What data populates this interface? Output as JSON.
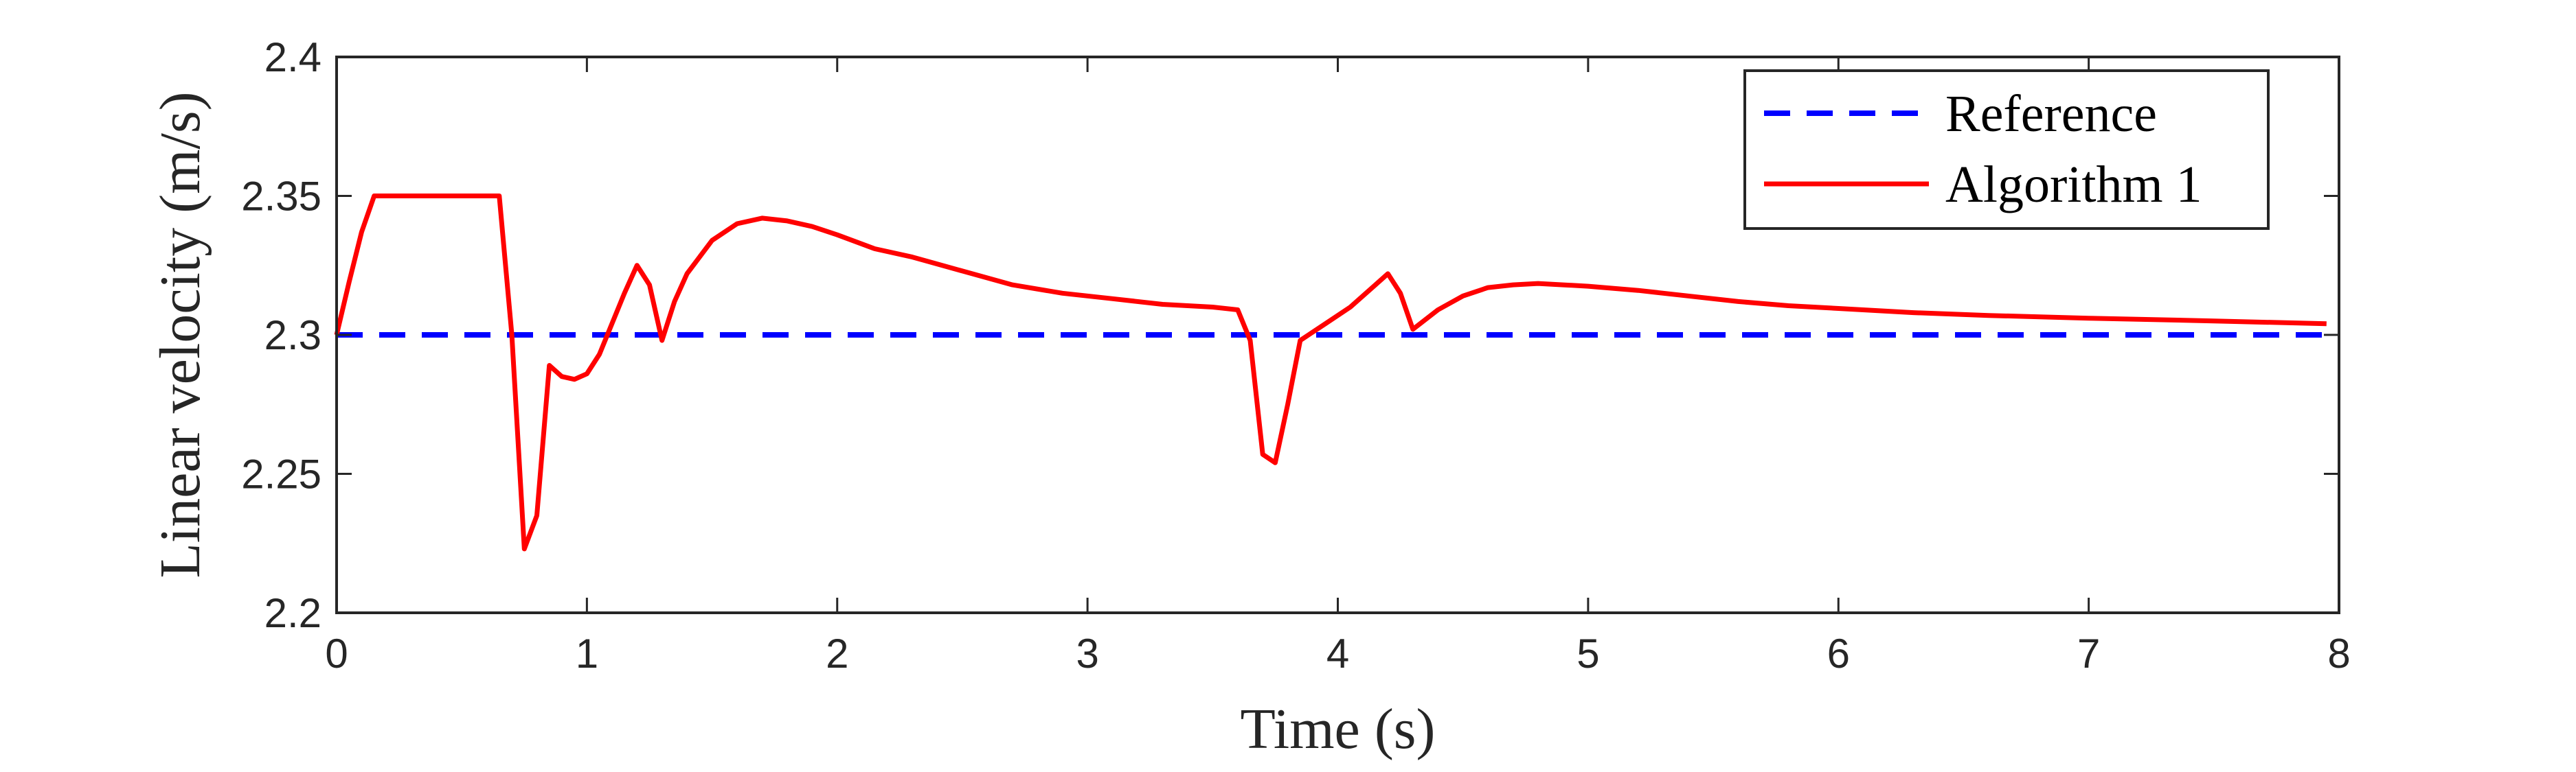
{
  "chart_data": {
    "type": "line",
    "xlabel": "Time (s)",
    "ylabel": "Linear velocity (m/s)",
    "xlim": [
      0,
      8
    ],
    "ylim": [
      2.2,
      2.4
    ],
    "xticks": [
      0,
      1,
      2,
      3,
      4,
      5,
      6,
      7,
      8
    ],
    "yticks": [
      2.2,
      2.25,
      2.3,
      2.35,
      2.4
    ],
    "xtick_labels": [
      "0",
      "1",
      "2",
      "3",
      "4",
      "5",
      "6",
      "7",
      "8"
    ],
    "ytick_labels": [
      "2.2",
      "2.25",
      "2.3",
      "2.35",
      "2.4"
    ],
    "grid": false,
    "legend_position": "top-right",
    "series": [
      {
        "name": "Reference",
        "color": "#0000ff",
        "style": "dashed",
        "x": [
          0,
          7.95
        ],
        "y": [
          2.3,
          2.3
        ]
      },
      {
        "name": "Algorithm 1",
        "color": "#ff0000",
        "style": "solid",
        "x": [
          0,
          0.05,
          0.1,
          0.15,
          0.65,
          0.7,
          0.75,
          0.8,
          0.85,
          0.9,
          0.95,
          1.0,
          1.05,
          1.1,
          1.15,
          1.2,
          1.25,
          1.3,
          1.35,
          1.4,
          1.5,
          1.6,
          1.7,
          1.8,
          1.9,
          2.0,
          2.15,
          2.3,
          2.5,
          2.7,
          2.9,
          3.1,
          3.3,
          3.5,
          3.6,
          3.65,
          3.7,
          3.75,
          3.8,
          3.85,
          3.95,
          4.05,
          4.15,
          4.2,
          4.25,
          4.3,
          4.4,
          4.5,
          4.6,
          4.7,
          4.8,
          4.9,
          5.0,
          5.2,
          5.4,
          5.6,
          5.8,
          6.0,
          6.3,
          6.6,
          7.0,
          7.5,
          7.95
        ],
        "y": [
          2.3,
          2.319,
          2.337,
          2.35,
          2.35,
          2.3,
          2.223,
          2.235,
          2.289,
          2.285,
          2.284,
          2.286,
          2.293,
          2.304,
          2.315,
          2.325,
          2.318,
          2.298,
          2.312,
          2.322,
          2.334,
          2.34,
          2.342,
          2.341,
          2.339,
          2.336,
          2.331,
          2.328,
          2.323,
          2.318,
          2.315,
          2.313,
          2.311,
          2.31,
          2.309,
          2.298,
          2.257,
          2.254,
          2.275,
          2.298,
          2.304,
          2.31,
          2.318,
          2.322,
          2.315,
          2.302,
          2.309,
          2.314,
          2.317,
          2.318,
          2.3185,
          2.318,
          2.3175,
          2.316,
          2.314,
          2.312,
          2.3105,
          2.3095,
          2.308,
          2.307,
          2.306,
          2.305,
          2.304
        ]
      }
    ]
  }
}
